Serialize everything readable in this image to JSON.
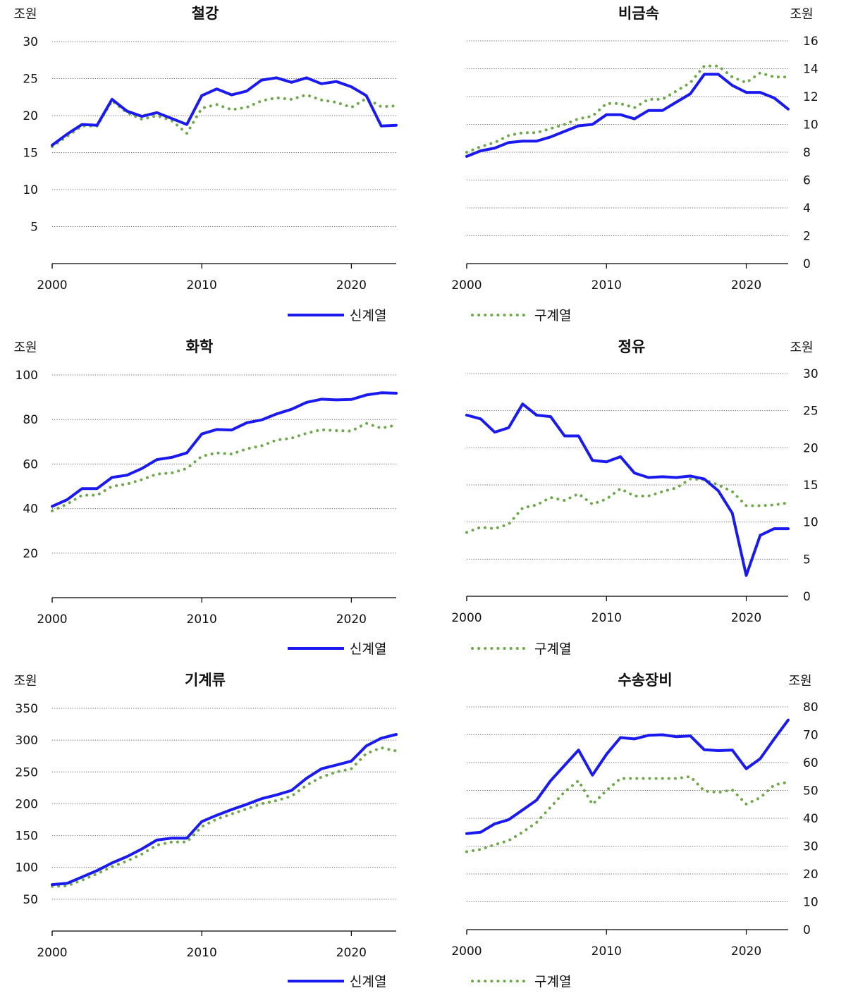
{
  "legend": {
    "new_series": "신계열",
    "old_series": "구계열"
  },
  "colors": {
    "new_series": "#1a1aef",
    "old_series": "#6fa84a",
    "grid": "#666666",
    "axis": "#000000"
  },
  "chart_data": [
    {
      "type": "line",
      "title": "철강",
      "unit": "조원",
      "unit_side": "left",
      "xlim": [
        2000,
        2023
      ],
      "xticks": [
        2000,
        2010,
        2020
      ],
      "ylim": [
        0,
        30
      ],
      "yticks": [
        5,
        10,
        15,
        20,
        25,
        30
      ],
      "grid": true,
      "x": [
        2000,
        2001,
        2002,
        2003,
        2004,
        2005,
        2006,
        2007,
        2008,
        2009,
        2010,
        2011,
        2012,
        2013,
        2014,
        2015,
        2016,
        2017,
        2018,
        2019,
        2020,
        2021,
        2022,
        2023
      ],
      "series": [
        {
          "name": "신계열",
          "values": [
            16.0,
            17.5,
            18.8,
            18.7,
            22.2,
            20.6,
            19.9,
            20.4,
            19.6,
            18.8,
            22.7,
            23.6,
            22.8,
            23.3,
            24.8,
            25.1,
            24.5,
            25.1,
            24.3,
            24.6,
            23.9,
            22.7,
            18.6,
            18.7
          ]
        },
        {
          "name": "구계열",
          "values": [
            15.8,
            17.2,
            18.6,
            18.6,
            22.0,
            20.4,
            19.5,
            20.0,
            19.3,
            17.6,
            21.0,
            21.5,
            20.8,
            21.1,
            22.0,
            22.4,
            22.2,
            22.8,
            22.1,
            21.8,
            21.1,
            22.3,
            21.2,
            21.3
          ]
        }
      ]
    },
    {
      "type": "line",
      "title": "비금속",
      "unit": "조원",
      "unit_side": "right",
      "xlim": [
        2000,
        2023
      ],
      "xticks": [
        2000,
        2010,
        2020
      ],
      "ylim": [
        0,
        16
      ],
      "yticks": [
        0,
        2,
        4,
        6,
        8,
        10,
        12,
        14,
        16
      ],
      "grid": true,
      "x": [
        2000,
        2001,
        2002,
        2003,
        2004,
        2005,
        2006,
        2007,
        2008,
        2009,
        2010,
        2011,
        2012,
        2013,
        2014,
        2015,
        2016,
        2017,
        2018,
        2019,
        2020,
        2021,
        2022,
        2023
      ],
      "series": [
        {
          "name": "신계열",
          "values": [
            7.7,
            8.1,
            8.3,
            8.7,
            8.8,
            8.8,
            9.1,
            9.5,
            9.9,
            10.0,
            10.7,
            10.7,
            10.4,
            11.0,
            11.0,
            11.6,
            12.2,
            13.6,
            13.6,
            12.8,
            12.3,
            12.3,
            11.9,
            11.1
          ]
        },
        {
          "name": "구계열",
          "values": [
            8.0,
            8.4,
            8.7,
            9.2,
            9.4,
            9.4,
            9.7,
            10.0,
            10.4,
            10.6,
            11.5,
            11.5,
            11.2,
            11.8,
            11.8,
            12.4,
            13.0,
            14.2,
            14.2,
            13.4,
            13.0,
            13.7,
            13.4,
            13.4
          ]
        }
      ]
    },
    {
      "type": "line",
      "title": "화학",
      "unit": "조원",
      "unit_side": "left",
      "xlim": [
        2000,
        2023
      ],
      "xticks": [
        2000,
        2010,
        2020
      ],
      "ylim": [
        0,
        100
      ],
      "yticks": [
        20,
        40,
        60,
        80,
        100
      ],
      "grid": true,
      "x": [
        2000,
        2001,
        2002,
        2003,
        2004,
        2005,
        2006,
        2007,
        2008,
        2009,
        2010,
        2011,
        2012,
        2013,
        2014,
        2015,
        2016,
        2017,
        2018,
        2019,
        2020,
        2021,
        2022,
        2023
      ],
      "series": [
        {
          "name": "신계열",
          "values": [
            41,
            44,
            49,
            49,
            54,
            55,
            58,
            62,
            63,
            65,
            73.5,
            75.5,
            75.3,
            78.5,
            79.8,
            82.5,
            84.6,
            87.7,
            89.1,
            88.8,
            89.0,
            91.0,
            92.0,
            91.8
          ]
        },
        {
          "name": "구계열",
          "values": [
            39,
            42,
            46,
            46,
            50,
            51,
            53,
            55.5,
            56,
            58,
            63.5,
            65,
            64.5,
            66.8,
            68.2,
            70.8,
            71.6,
            73.8,
            75.4,
            75.0,
            74.8,
            78.3,
            76.1,
            77.5
          ]
        }
      ]
    },
    {
      "type": "line",
      "title": "정유",
      "unit": "조원",
      "unit_side": "right",
      "xlim": [
        2000,
        2023
      ],
      "xticks": [
        2000,
        2010,
        2020
      ],
      "ylim": [
        0,
        30
      ],
      "yticks": [
        0,
        5,
        10,
        15,
        20,
        25,
        30
      ],
      "grid": true,
      "x": [
        2000,
        2001,
        2002,
        2003,
        2004,
        2005,
        2006,
        2007,
        2008,
        2009,
        2010,
        2011,
        2012,
        2013,
        2014,
        2015,
        2016,
        2017,
        2018,
        2019,
        2020,
        2021,
        2022,
        2023
      ],
      "series": [
        {
          "name": "신계열",
          "values": [
            24.4,
            23.9,
            22.1,
            22.7,
            25.9,
            24.4,
            24.2,
            21.6,
            21.6,
            18.3,
            18.1,
            18.8,
            16.6,
            16.0,
            16.1,
            16.0,
            16.2,
            15.8,
            14.2,
            11.2,
            2.8,
            8.2,
            9.1,
            9.1
          ]
        },
        {
          "name": "구계열",
          "values": [
            8.6,
            9.3,
            9.1,
            9.7,
            11.9,
            12.3,
            13.3,
            12.9,
            13.8,
            12.4,
            13.1,
            14.5,
            13.5,
            13.5,
            14.1,
            14.6,
            15.8,
            15.7,
            15.0,
            14.1,
            12.2,
            12.2,
            12.3,
            12.6
          ]
        }
      ]
    },
    {
      "type": "line",
      "title": "기계류",
      "unit": "조원",
      "unit_side": "left",
      "xlim": [
        2000,
        2023
      ],
      "xticks": [
        2000,
        2010,
        2020
      ],
      "ylim": [
        0,
        350
      ],
      "yticks": [
        50,
        100,
        150,
        200,
        250,
        300,
        350
      ],
      "grid": true,
      "x": [
        2000,
        2001,
        2002,
        2003,
        2004,
        2005,
        2006,
        2007,
        2008,
        2009,
        2010,
        2011,
        2012,
        2013,
        2014,
        2015,
        2016,
        2017,
        2018,
        2019,
        2020,
        2021,
        2022,
        2023
      ],
      "series": [
        {
          "name": "신계열",
          "values": [
            73,
            75,
            85,
            95,
            107,
            117,
            129,
            143,
            146,
            146,
            172,
            182,
            191,
            199,
            208,
            214,
            221,
            240,
            255,
            261,
            267,
            291,
            303,
            309
          ]
        },
        {
          "name": "구계열",
          "values": [
            70,
            71,
            80,
            90,
            101,
            110,
            121,
            135,
            140,
            140,
            164,
            176,
            184,
            192,
            200,
            205,
            212,
            229,
            242,
            250,
            255,
            279,
            288,
            283
          ]
        }
      ]
    },
    {
      "type": "line",
      "title": "수송장비",
      "unit": "조원",
      "unit_side": "right",
      "xlim": [
        2000,
        2023
      ],
      "xticks": [
        2000,
        2010,
        2020
      ],
      "ylim": [
        0,
        80
      ],
      "yticks": [
        0,
        10,
        20,
        30,
        40,
        50,
        60,
        70,
        80
      ],
      "grid": true,
      "x": [
        2000,
        2001,
        2002,
        2003,
        2004,
        2005,
        2006,
        2007,
        2008,
        2009,
        2010,
        2011,
        2012,
        2013,
        2014,
        2015,
        2016,
        2017,
        2018,
        2019,
        2020,
        2021,
        2022,
        2023
      ],
      "series": [
        {
          "name": "신계열",
          "values": [
            34.5,
            35,
            38,
            39.5,
            43,
            46.5,
            53.5,
            59,
            64.5,
            55.5,
            63,
            69,
            68.5,
            69.8,
            70,
            69.3,
            69.6,
            64.6,
            64.3,
            64.5,
            57.8,
            61.4,
            68.5,
            75.3
          ]
        },
        {
          "name": "구계열",
          "values": [
            28,
            28.8,
            30.5,
            32,
            35,
            38.5,
            44,
            49.5,
            53.5,
            45,
            50,
            54.3,
            54.3,
            54.3,
            54.3,
            54.3,
            55,
            49.8,
            49.3,
            50.2,
            45.1,
            47.4,
            52,
            53
          ]
        }
      ]
    }
  ]
}
